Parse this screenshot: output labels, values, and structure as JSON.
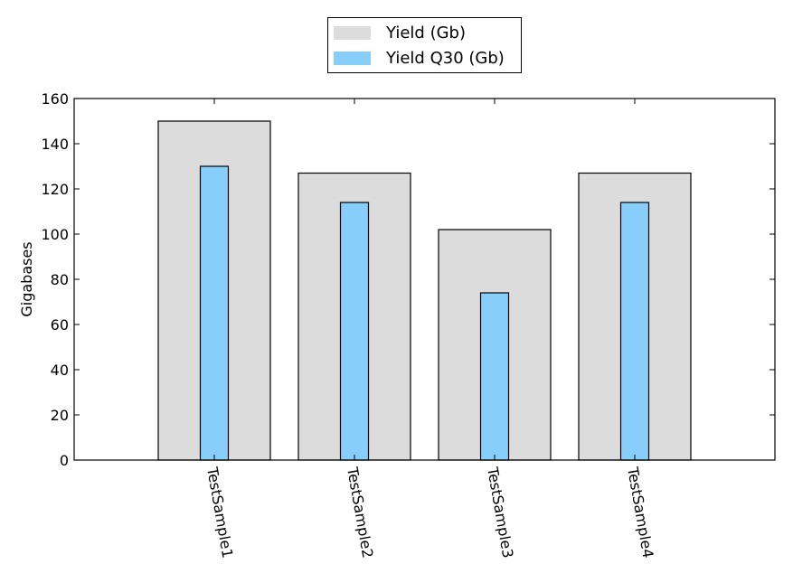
{
  "chart_data": {
    "type": "bar",
    "categories": [
      "TestSample1",
      "TestSample2",
      "TestSample3",
      "TestSample4"
    ],
    "series": [
      {
        "name": "Yield (Gb)",
        "values": [
          150,
          127,
          102,
          127
        ],
        "color": "#dcdcdc"
      },
      {
        "name": "Yield Q30 (Gb)",
        "values": [
          130,
          114,
          74,
          114
        ],
        "color": "#87cefa"
      }
    ],
    "title": "",
    "xlabel": "",
    "ylabel": "Gigabases",
    "ylim": [
      0,
      160
    ],
    "yticks": [
      0,
      20,
      40,
      60,
      80,
      100,
      120,
      140,
      160
    ],
    "grid": false,
    "legend_position": "top-center",
    "edge_color": "#000000"
  }
}
